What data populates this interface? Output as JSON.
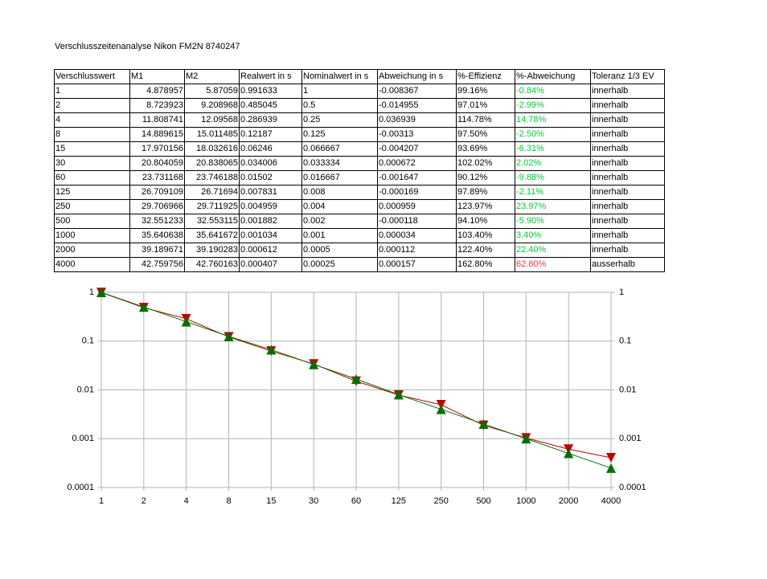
{
  "title": "Verschlusszeitenanalyse Nikon FM2N 8740247",
  "table": {
    "header": [
      "Verschlusswert",
      "M1",
      "M2",
      "Realwert in s",
      "Nominalwert in s",
      "Abweichung in s",
      "%-Effizienz",
      "%-Abweichung",
      "Toleranz 1/3 EV"
    ],
    "rows": [
      [
        "1",
        "4.878957",
        "5.87059",
        "0.991633",
        "1",
        "-0.008367",
        "99.16%",
        "-0.84%",
        "innerhalb"
      ],
      [
        "2",
        "8.723923",
        "9.208968",
        "0.485045",
        "0.5",
        "-0.014955",
        "97.01%",
        "-2.99%",
        "innerhalb"
      ],
      [
        "4",
        "11.808741",
        "12.09568",
        "0.286939",
        "0.25",
        "0.036939",
        "114.78%",
        "14.78%",
        "innerhalb"
      ],
      [
        "8",
        "14.889615",
        "15.011485",
        "0.12187",
        "0.125",
        "-0.00313",
        "97.50%",
        "-2.50%",
        "innerhalb"
      ],
      [
        "15",
        "17.970156",
        "18.032616",
        "0.06246",
        "0.066667",
        "-0.004207",
        "93.69%",
        "-6.31%",
        "innerhalb"
      ],
      [
        "30",
        "20.804059",
        "20.838065",
        "0.034006",
        "0.033334",
        "0.000672",
        "102.02%",
        "2.02%",
        "innerhalb"
      ],
      [
        "60",
        "23.731168",
        "23.746188",
        "0.01502",
        "0.016667",
        "-0.001647",
        "90.12%",
        "-9.88%",
        "innerhalb"
      ],
      [
        "125",
        "26.709109",
        "26.71694",
        "0.007831",
        "0.008",
        "-0.000169",
        "97.89%",
        "-2.11%",
        "innerhalb"
      ],
      [
        "250",
        "29.706966",
        "29.711925",
        "0.004959",
        "0.004",
        "0.000959",
        "123.97%",
        "23.97%",
        "innerhalb"
      ],
      [
        "500",
        "32.551233",
        "32.553115",
        "0.001882",
        "0.002",
        "-0.000118",
        "94.10%",
        "-5.90%",
        "innerhalb"
      ],
      [
        "1000",
        "35.640638",
        "35.641672",
        "0.001034",
        "0.001",
        "0.000034",
        "103.40%",
        "3.40%",
        "innerhalb"
      ],
      [
        "2000",
        "39.189671",
        "39.190283",
        "0.000612",
        "0.0005",
        "0.000112",
        "122.40%",
        "22.40%",
        "innerhalb"
      ],
      [
        "4000",
        "42.759756",
        "42.760163",
        "0.000407",
        "0.00025",
        "0.000157",
        "162.80%",
        "62.80%",
        "ausserhalb"
      ]
    ],
    "abweichung_colors": [
      "#00cc33",
      "#00cc33",
      "#00cc33",
      "#00cc33",
      "#00cc33",
      "#00cc33",
      "#00cc33",
      "#00cc33",
      "#00cc33",
      "#00cc33",
      "#00cc33",
      "#00cc33",
      "#ff3333"
    ]
  },
  "chart_data": {
    "type": "line",
    "categories": [
      "1",
      "2",
      "4",
      "8",
      "15",
      "30",
      "60",
      "125",
      "250",
      "500",
      "1000",
      "2000",
      "4000"
    ],
    "series": [
      {
        "color": "#c00000",
        "marker": "triangle-down",
        "values": [
          0.991633,
          0.485045,
          0.286939,
          0.12187,
          0.06246,
          0.034006,
          0.01502,
          0.007831,
          0.004959,
          0.001882,
          0.001034,
          0.000612,
          0.000407
        ]
      },
      {
        "color": "#007000",
        "marker": "triangle-up",
        "values": [
          1,
          0.5,
          0.25,
          0.125,
          0.066667,
          0.033334,
          0.016667,
          0.008,
          0.004,
          0.002,
          0.001,
          0.0005,
          0.00025
        ]
      }
    ],
    "log_y": true,
    "ylim": [
      0.0001,
      1
    ],
    "yticks": [
      1,
      0.1,
      0.01,
      0.001,
      0.0001
    ],
    "y2lim": [
      0.0001,
      1
    ],
    "y2ticks": [
      1,
      0.1,
      0.01,
      0.001,
      0.0001
    ],
    "grid": true
  }
}
